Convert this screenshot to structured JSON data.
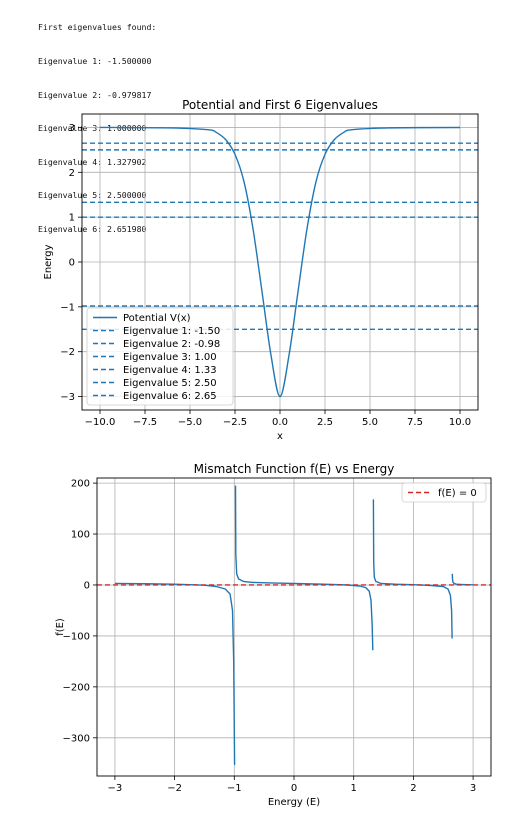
{
  "console": {
    "header": "First eigenvalues found:",
    "lines": [
      "Eigenvalue 1: -1.500000",
      "Eigenvalue 2: -0.979817",
      "Eigenvalue 3: 1.000000",
      "Eigenvalue 4: 1.327902",
      "Eigenvalue 5: 2.500000",
      "Eigenvalue 6: 2.651980"
    ]
  },
  "chart_data": [
    {
      "type": "line",
      "title": "Potential and First 6 Eigenvalues",
      "xlabel": "x",
      "ylabel": "Energy",
      "xlim": [
        -11,
        11
      ],
      "ylim": [
        -3.3,
        3.3
      ],
      "xticks": [
        -10,
        -7.5,
        -5,
        -2.5,
        0,
        2.5,
        5,
        7.5,
        10
      ],
      "xtick_labels": [
        "−10.0",
        "−7.5",
        "−5.0",
        "−2.5",
        "0.0",
        "2.5",
        "5.0",
        "7.5",
        "10.0"
      ],
      "yticks": [
        -3,
        -2,
        -1,
        0,
        1,
        2,
        3
      ],
      "ytick_labels": [
        "−3",
        "−2",
        "−1",
        "0",
        "1",
        "2",
        "3"
      ],
      "grid": true,
      "legend_position": "lower-left",
      "series": [
        {
          "name": "Potential V(x)",
          "style": "solid",
          "color": "#1f77b4",
          "x": [
            -10,
            -6,
            -4,
            -3.5,
            -3,
            -2.5,
            -2,
            -1.5,
            -1,
            -0.5,
            0,
            0.5,
            1,
            1.5,
            2,
            2.5,
            3,
            3.5,
            4,
            6,
            10
          ],
          "y": [
            3,
            2.99,
            2.95,
            2.88,
            2.72,
            2.4,
            1.79,
            0.74,
            -0.66,
            -2.08,
            -3,
            -2.08,
            -0.66,
            0.74,
            1.79,
            2.4,
            2.72,
            2.88,
            2.95,
            2.99,
            3
          ]
        },
        {
          "name": "Eigenvalue 1: -1.50",
          "style": "dashed",
          "color": "#1f77b4",
          "value": -1.5
        },
        {
          "name": "Eigenvalue 2: -0.98",
          "style": "dashed",
          "color": "#1f77b4",
          "value": -0.98
        },
        {
          "name": "Eigenvalue 3: 1.00",
          "style": "dashed",
          "color": "#1f77b4",
          "value": 1.0
        },
        {
          "name": "Eigenvalue 4: 1.33",
          "style": "dashed",
          "color": "#1f77b4",
          "value": 1.33
        },
        {
          "name": "Eigenvalue 5: 2.50",
          "style": "dashed",
          "color": "#1f77b4",
          "value": 2.5
        },
        {
          "name": "Eigenvalue 6: 2.65",
          "style": "dashed",
          "color": "#1f77b4",
          "value": 2.65
        }
      ]
    },
    {
      "type": "line",
      "title": "Mismatch Function f(E) vs Energy",
      "xlabel": "Energy (E)",
      "ylabel": "f(E)",
      "xlim": [
        -3.3,
        3.3
      ],
      "ylim": [
        -375,
        210
      ],
      "xticks": [
        -3,
        -2,
        -1,
        0,
        1,
        2,
        3
      ],
      "xtick_labels": [
        "−3",
        "−2",
        "−1",
        "0",
        "1",
        "2",
        "3"
      ],
      "yticks": [
        -300,
        -200,
        -100,
        0,
        100,
        200
      ],
      "ytick_labels": [
        "−300",
        "−200",
        "−100",
        "0",
        "100",
        "200"
      ],
      "grid": true,
      "legend_position": "upper-right",
      "series": [
        {
          "name": "",
          "style": "solid",
          "color": "#1f77b4",
          "segments": [
            {
              "x": [
                -3.0,
                -2.5,
                -2.0,
                -1.5,
                -1.3,
                -1.15,
                -1.07,
                -1.03,
                -1.01,
                -0.995,
                -0.985
              ],
              "y": [
                3,
                2.5,
                1.5,
                -0.5,
                -3,
                -8,
                -18,
                -50,
                -150,
                -352,
                -352
              ]
            },
            {
              "x": [
                -0.98,
                -0.975,
                -0.96,
                -0.93,
                -0.85,
                -0.7,
                -0.4,
                0,
                0.5,
                0.9,
                1.1,
                1.2,
                1.26,
                1.29,
                1.31,
                1.32
              ],
              "y": [
                195,
                60,
                22,
                12,
                7,
                5,
                4,
                3,
                1.5,
                0,
                -2,
                -5,
                -12,
                -30,
                -80,
                -128
              ]
            },
            {
              "x": [
                1.33,
                1.335,
                1.345,
                1.37,
                1.45,
                1.7,
                2.0,
                2.3,
                2.5,
                2.58,
                2.62,
                2.64,
                2.648
              ],
              "y": [
                168,
                45,
                15,
                7,
                3,
                1.5,
                0.5,
                -1,
                -3,
                -8,
                -20,
                -50,
                -105
              ]
            },
            {
              "x": [
                2.652,
                2.655,
                2.662,
                2.68,
                2.72,
                2.8,
                2.9,
                3.0
              ],
              "y": [
                22,
                12,
                6,
                3,
                1.5,
                1,
                0.5,
                0.3
              ]
            }
          ]
        },
        {
          "name": "f(E) = 0",
          "style": "dashed",
          "color": "#d62728",
          "value": 0
        }
      ]
    }
  ]
}
